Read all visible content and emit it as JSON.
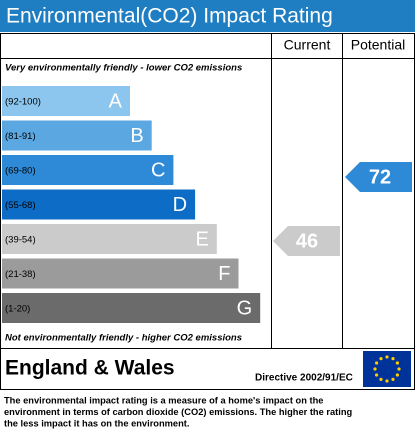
{
  "header": {
    "title": "Environmental(CO2) Impact Rating"
  },
  "columns": {
    "current": "Current",
    "potential": "Potential"
  },
  "top_note": "Very environmentally friendly - lower CO2 emissions",
  "bands": [
    {
      "range": "(92-100)",
      "letter": "A",
      "color": "#8cc5ee"
    },
    {
      "range": "(81-91)",
      "letter": "B",
      "color": "#5ba7e2"
    },
    {
      "range": "(69-80)",
      "letter": "C",
      "color": "#2e8ad6"
    },
    {
      "range": "(55-68)",
      "letter": "D",
      "color": "#0d6dc6"
    },
    {
      "range": "(39-54)",
      "letter": "E",
      "color": "#cbcbcb"
    },
    {
      "range": "(21-38)",
      "letter": "F",
      "color": "#9b9b9b"
    },
    {
      "range": "(1-20)",
      "letter": "G",
      "color": "#6b6b6b"
    }
  ],
  "bottom_note": "Not environmentally friendly - higher CO2 emissions",
  "current": {
    "value": "46"
  },
  "potential": {
    "value": "72"
  },
  "footer": {
    "region": "England & Wales",
    "directive": "Directive 2002/91/EC"
  },
  "description": [
    "The environmental impact rating is a measure of a home's impact on the",
    "environment in terms of carbon dioxide (CO2) emissions. The higher the rating",
    "the less impact it has on the environment."
  ]
}
